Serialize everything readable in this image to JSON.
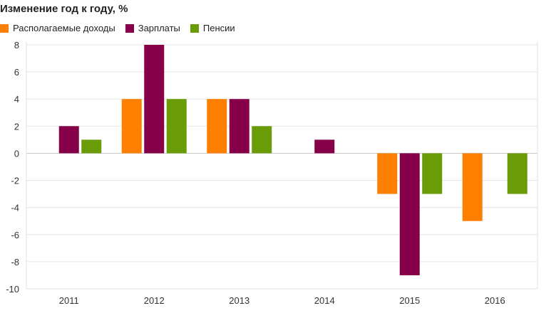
{
  "chart_data": {
    "type": "bar",
    "title": "Изменение год к году, %",
    "categories": [
      "2011",
      "2012",
      "2013",
      "2014",
      "2015",
      "2016"
    ],
    "series": [
      {
        "name": "Располагаемые доходы",
        "color": "#ff8000",
        "values": [
          null,
          4,
          4,
          null,
          -3,
          -5
        ]
      },
      {
        "name": "Зарплаты",
        "color": "#850048",
        "values": [
          2,
          8,
          4,
          1,
          -9,
          null
        ]
      },
      {
        "name": "Пенсии",
        "color": "#6a9c08",
        "values": [
          1,
          4,
          2,
          null,
          -3,
          -3
        ]
      }
    ],
    "ylim": [
      -10,
      8
    ],
    "yticks": [
      8,
      6,
      4,
      2,
      0,
      -2,
      -4,
      -6,
      -8,
      -10
    ],
    "grid": true,
    "legend_position": "top-left"
  }
}
